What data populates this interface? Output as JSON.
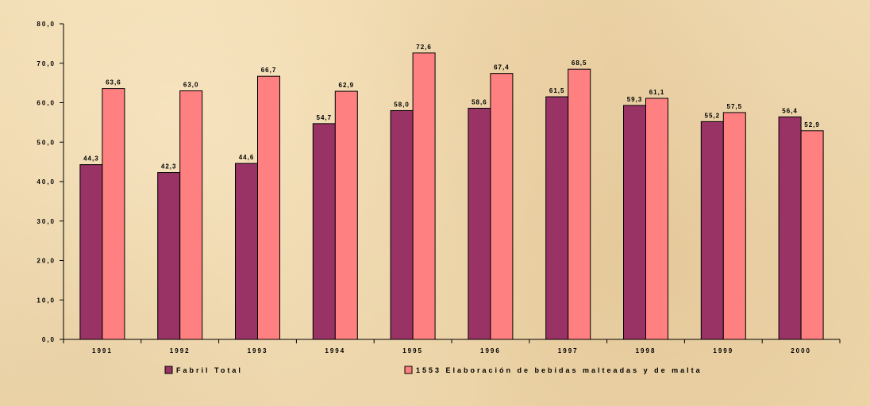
{
  "chart_data": {
    "type": "bar",
    "categories": [
      "1991",
      "1992",
      "1993",
      "1994",
      "1995",
      "1996",
      "1997",
      "1998",
      "1999",
      "2000"
    ],
    "series": [
      {
        "name": "Fabril Total",
        "color": "#993366",
        "values": [
          44.3,
          42.3,
          44.6,
          54.7,
          58.0,
          58.6,
          61.5,
          59.3,
          55.2,
          56.4
        ],
        "labels": [
          "44,3",
          "42,3",
          "44,6",
          "54,7",
          "58,0",
          "58,6",
          "61,5",
          "59,3",
          "55,2",
          "56,4"
        ]
      },
      {
        "name": "1553 Elaboración de bebidas malteadas y de malta",
        "color": "#ff8080",
        "values": [
          63.6,
          63.0,
          66.7,
          62.9,
          72.6,
          67.4,
          68.5,
          61.1,
          57.5,
          52.9
        ],
        "labels": [
          "63,6",
          "63,0",
          "66,7",
          "62,9",
          "72,6",
          "67,4",
          "68,5",
          "61,1",
          "57,5",
          "52,9"
        ]
      }
    ],
    "yticks": [
      0,
      10,
      20,
      30,
      40,
      50,
      60,
      70,
      80
    ],
    "ytick_labels": [
      "0,0",
      "10,0",
      "20,0",
      "30,0",
      "40,0",
      "50,0",
      "60,0",
      "70,0",
      "80,0"
    ],
    "ylim": [
      0,
      80
    ],
    "title": "",
    "xlabel": "",
    "ylabel": "",
    "grid": false,
    "legend": "bottom"
  }
}
